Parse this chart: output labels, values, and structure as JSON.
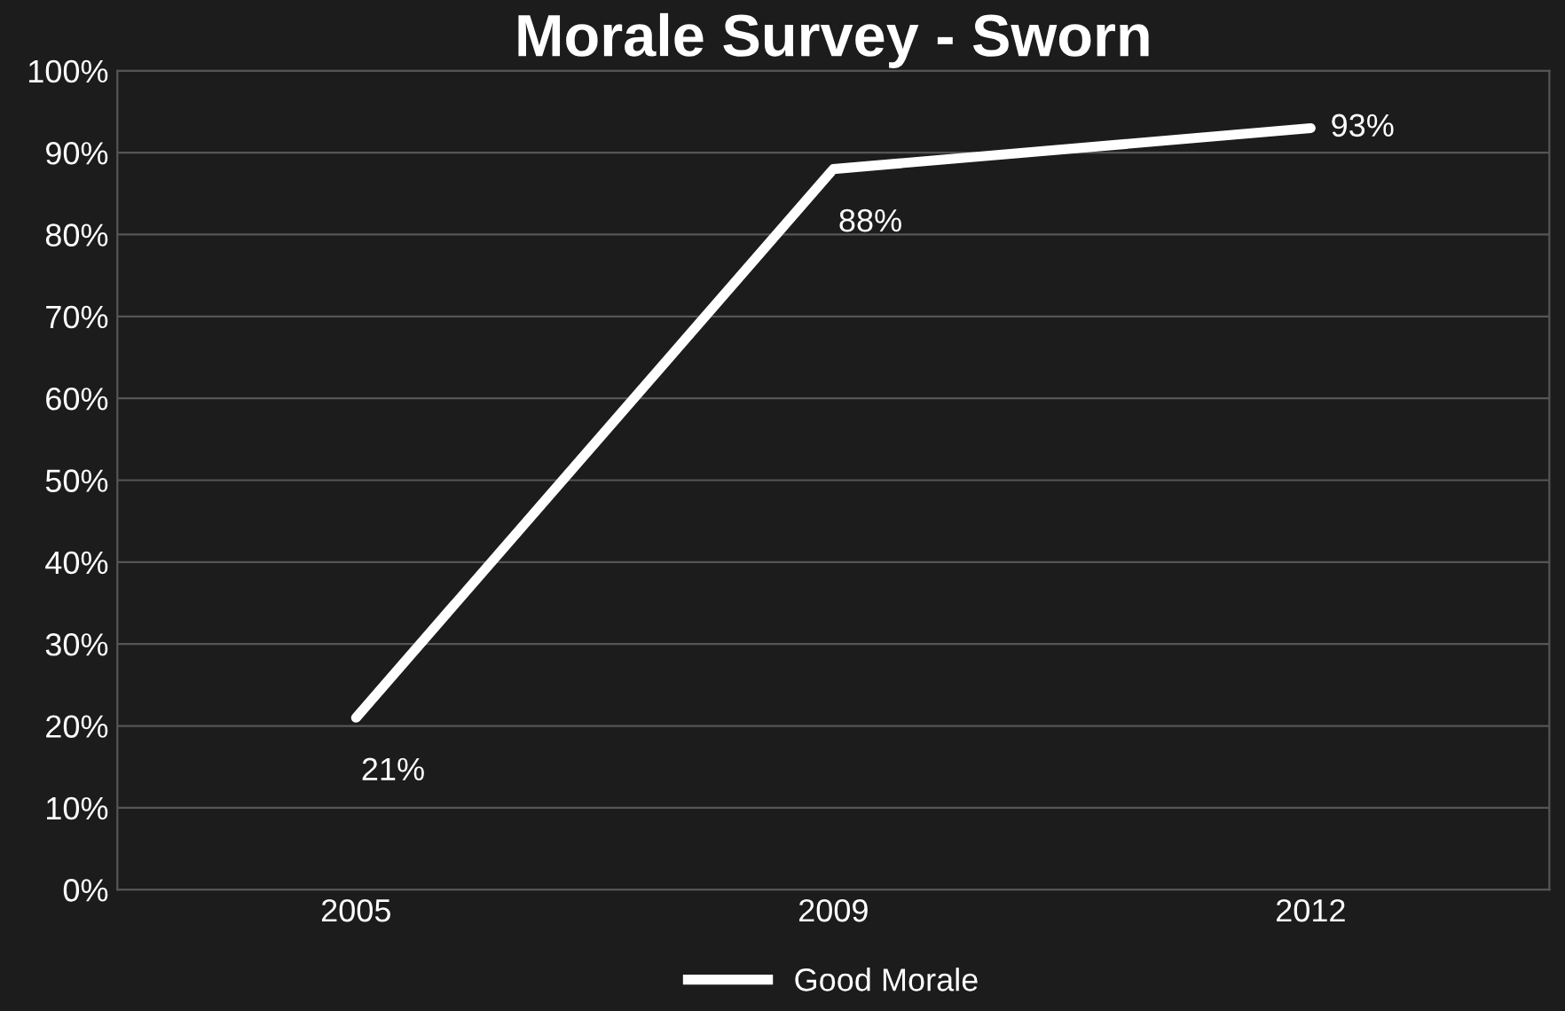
{
  "chart_data": {
    "type": "line",
    "title": "Morale Survey - Sworn",
    "categories": [
      "2005",
      "2009",
      "2012"
    ],
    "series": [
      {
        "name": "Good Morale",
        "color": "#ffffff",
        "values": [
          21,
          88,
          93
        ]
      }
    ],
    "ylim": [
      0,
      100
    ],
    "yticks": [
      {
        "value": 0,
        "label": "0%"
      },
      {
        "value": 10,
        "label": "10%"
      },
      {
        "value": 20,
        "label": "20%"
      },
      {
        "value": 30,
        "label": "30%"
      },
      {
        "value": 40,
        "label": "40%"
      },
      {
        "value": 50,
        "label": "50%"
      },
      {
        "value": 60,
        "label": "60%"
      },
      {
        "value": 70,
        "label": "70%"
      },
      {
        "value": 80,
        "label": "80%"
      },
      {
        "value": 90,
        "label": "90%"
      },
      {
        "value": 100,
        "label": "100%"
      }
    ],
    "value_labels": [
      "21%",
      "88%",
      "93%"
    ],
    "grid": "y",
    "legend": "bottom",
    "marker": "none",
    "line_style": "solid"
  }
}
